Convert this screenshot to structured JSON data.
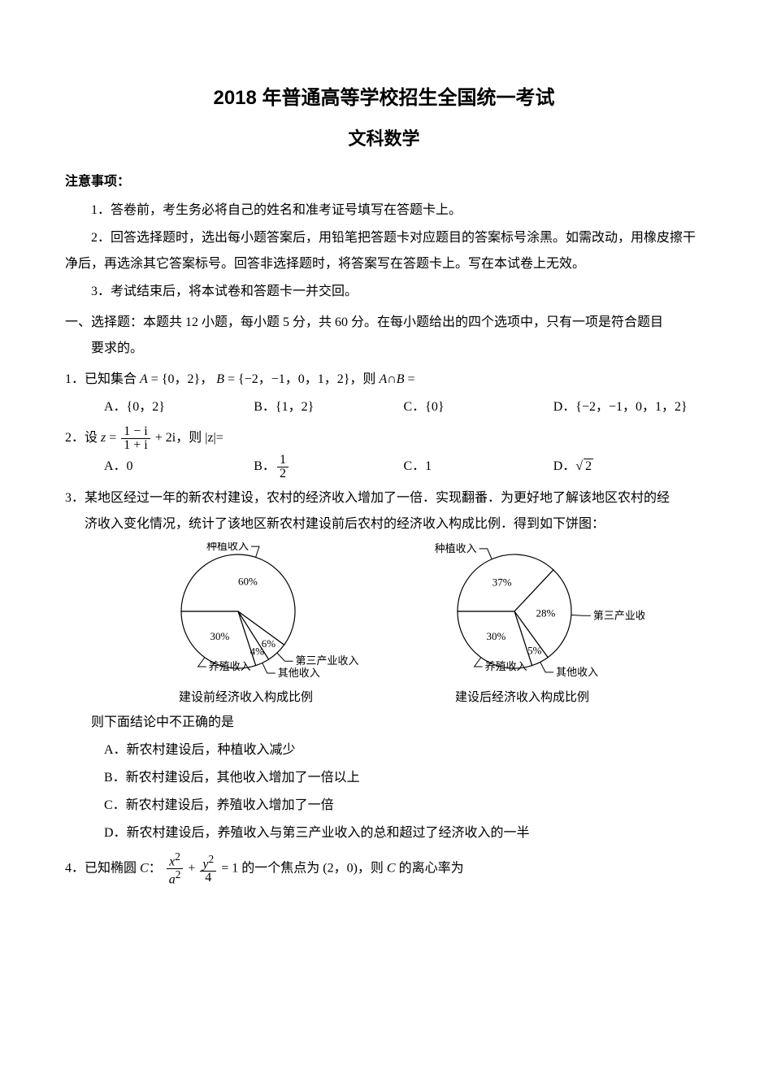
{
  "title_line1": "2018 年普通高等学校招生全国统一考试",
  "title_line2": "文科数学",
  "notice_heading": "注意事项：",
  "notice_items": [
    "1．答卷前，考生务必将自己的姓名和准考证号填写在答题卡上。",
    "2．回答选择题时，选出每小题答案后，用铅笔把答题卡对应题目的答案标号涂黑。如需改动，用橡皮擦干净后，再选涂其它答案标号。回答非选择题时，将答案写在答题卡上。写在本试卷上无效。",
    "3．考试结束后，将本试卷和答题卡一并交回。"
  ],
  "section1_line1": "一、选择题：本题共 12 小题，每小题 5 分，共 60 分。在每小题给出的四个选项中，只有一项是符合题目",
  "section1_line2": "要求的。",
  "q1": {
    "stem_prefix": "1．已知集合 ",
    "A_label": "A",
    "A_set": " = {0，2}",
    "sep": "， ",
    "B_label": "B",
    "B_set": " = {−2，−1，0，1，2}",
    "tail": "，则 ",
    "inter": "A∩B",
    "eq": " =",
    "opts": {
      "A": "A．{0，2}",
      "B": "B．{1，2}",
      "C": "C．{0}",
      "D": "D．{−2，−1，0，1，2}"
    }
  },
  "q2": {
    "stem_prefix": "2．设 ",
    "z": "z",
    "eq": " = ",
    "frac_num": "1 − i",
    "frac_den": "1 + i",
    "plus": " + 2i",
    "tail1": "，则 ",
    "abs": "|z|",
    "tail2": "=",
    "opts": {
      "A": "A．0",
      "B_label": "B．",
      "B_num": "1",
      "B_den": "2",
      "C": "C．1",
      "D_label": "D．",
      "D_val": "2"
    }
  },
  "q3": {
    "stem_l1": "3．某地区经过一年的新农村建设，农村的经济收入增加了一倍．实现翻番．为更好地了解该地区农村的经",
    "stem_l2": "济收入变化情况，统计了该地区新农村建设前后农村的经济收入构成比例．得到如下饼图：",
    "chart_before": {
      "caption": "建设前经济收入构成比例",
      "labels": {
        "planting": "种植收入",
        "tertiary": "第三产业收入",
        "other": "其他收入",
        "breeding": "养殖收入"
      },
      "values": {
        "planting": 60,
        "tertiary": 6,
        "other": 4,
        "breeding": 30
      },
      "value_labels": {
        "planting": "60%",
        "tertiary": "6%",
        "other": "4%",
        "breeding": "30%"
      },
      "colors": {
        "fill": "#ffffff",
        "stroke": "#000000"
      },
      "radius": 70
    },
    "chart_after": {
      "caption": "建设后经济收入构成比例",
      "labels": {
        "planting": "种植收入",
        "tertiary": "第三产业收入",
        "other": "其他收入",
        "breeding": "养殖收入"
      },
      "values": {
        "planting": 37,
        "tertiary": 28,
        "other": 5,
        "breeding": 30
      },
      "value_labels": {
        "planting": "37%",
        "tertiary": "28%",
        "other": "5%",
        "breeding": "30%"
      },
      "colors": {
        "fill": "#ffffff",
        "stroke": "#000000"
      },
      "radius": 70
    },
    "after_chart": "则下面结论中不正确的是",
    "opts": {
      "A": "A．新农村建设后，种植收入减少",
      "B": "B．新农村建设后，其他收入增加了一倍以上",
      "C": "C．新农村建设后，养殖收入增加了一倍",
      "D": "D．新农村建设后，养殖收入与第三产业收入的总和超过了经济收入的一半"
    }
  },
  "q4": {
    "prefix": "4．已知椭圆 ",
    "C": "C",
    "colon": "：",
    "frac1_num_base": "x",
    "frac1_num_sup": "2",
    "frac1_den_base": "a",
    "frac1_den_sup": "2",
    "plus": " + ",
    "frac2_num_base": "y",
    "frac2_num_sup": "2",
    "frac2_den": "4",
    "eq1": " = 1",
    "mid": " 的一个焦点为 ",
    "focus": "(2，0)",
    "tail": "，则 ",
    "C2": "C",
    "end": " 的离心率为"
  }
}
